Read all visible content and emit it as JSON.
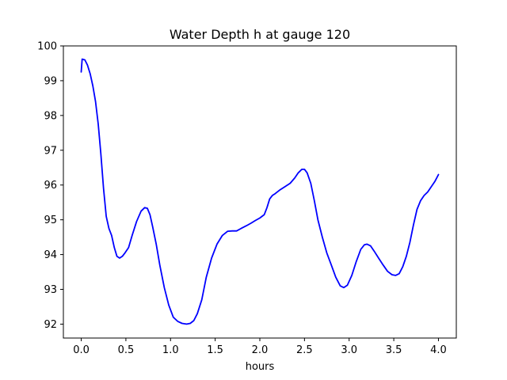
{
  "chart_data": {
    "type": "line",
    "title": "Water Depth h at gauge 120",
    "xlabel": "hours",
    "ylabel": "",
    "xlim": [
      -0.2,
      4.2
    ],
    "ylim": [
      91.6,
      100.0
    ],
    "xticks": [
      0.0,
      0.5,
      1.0,
      1.5,
      2.0,
      2.5,
      3.0,
      3.5,
      4.0
    ],
    "xtick_labels": [
      "0.0",
      "0.5",
      "1.0",
      "1.5",
      "2.0",
      "2.5",
      "3.0",
      "3.5",
      "4.0"
    ],
    "yticks": [
      92,
      93,
      94,
      95,
      96,
      97,
      98,
      99,
      100
    ],
    "ytick_labels": [
      "92",
      "93",
      "94",
      "95",
      "96",
      "97",
      "98",
      "99",
      "100"
    ],
    "grid": false,
    "legend": "none",
    "series": [
      {
        "color": "#0000ff",
        "x": [
          0.0,
          0.01,
          0.04,
          0.07,
          0.1,
          0.13,
          0.16,
          0.19,
          0.22,
          0.25,
          0.28,
          0.31,
          0.34,
          0.37,
          0.4,
          0.43,
          0.46,
          0.49,
          0.53,
          0.57,
          0.62,
          0.67,
          0.71,
          0.74,
          0.77,
          0.8,
          0.84,
          0.88,
          0.93,
          0.98,
          1.03,
          1.08,
          1.13,
          1.18,
          1.22,
          1.26,
          1.3,
          1.35,
          1.4,
          1.46,
          1.52,
          1.58,
          1.64,
          1.69,
          1.74,
          1.79,
          1.85,
          1.9,
          1.95,
          2.0,
          2.05,
          2.08,
          2.11,
          2.14,
          2.17,
          2.22,
          2.28,
          2.34,
          2.39,
          2.43,
          2.47,
          2.5,
          2.53,
          2.57,
          2.61,
          2.65,
          2.7,
          2.75,
          2.8,
          2.85,
          2.9,
          2.94,
          2.98,
          3.03,
          3.08,
          3.13,
          3.17,
          3.2,
          3.24,
          3.28,
          3.33,
          3.38,
          3.43,
          3.48,
          3.52,
          3.56,
          3.6,
          3.64,
          3.68,
          3.72,
          3.76,
          3.8,
          3.84,
          3.88,
          3.92,
          3.96,
          4.0
        ],
        "y": [
          99.25,
          99.62,
          99.6,
          99.45,
          99.2,
          98.85,
          98.4,
          97.75,
          96.9,
          95.9,
          95.1,
          94.75,
          94.55,
          94.2,
          93.95,
          93.9,
          93.95,
          94.05,
          94.2,
          94.55,
          94.95,
          95.25,
          95.35,
          95.33,
          95.15,
          94.8,
          94.3,
          93.7,
          93.05,
          92.55,
          92.2,
          92.08,
          92.02,
          92.0,
          92.02,
          92.1,
          92.3,
          92.7,
          93.35,
          93.9,
          94.3,
          94.55,
          94.67,
          94.68,
          94.68,
          94.75,
          94.83,
          94.9,
          94.98,
          95.05,
          95.15,
          95.35,
          95.6,
          95.7,
          95.75,
          95.85,
          95.95,
          96.05,
          96.2,
          96.35,
          96.45,
          96.45,
          96.35,
          96.05,
          95.55,
          95.0,
          94.5,
          94.05,
          93.7,
          93.35,
          93.1,
          93.05,
          93.12,
          93.4,
          93.8,
          94.15,
          94.28,
          94.3,
          94.25,
          94.1,
          93.9,
          93.7,
          93.52,
          93.42,
          93.4,
          93.45,
          93.65,
          93.95,
          94.35,
          94.85,
          95.3,
          95.55,
          95.7,
          95.8,
          95.95,
          96.1,
          96.3
        ]
      }
    ]
  }
}
